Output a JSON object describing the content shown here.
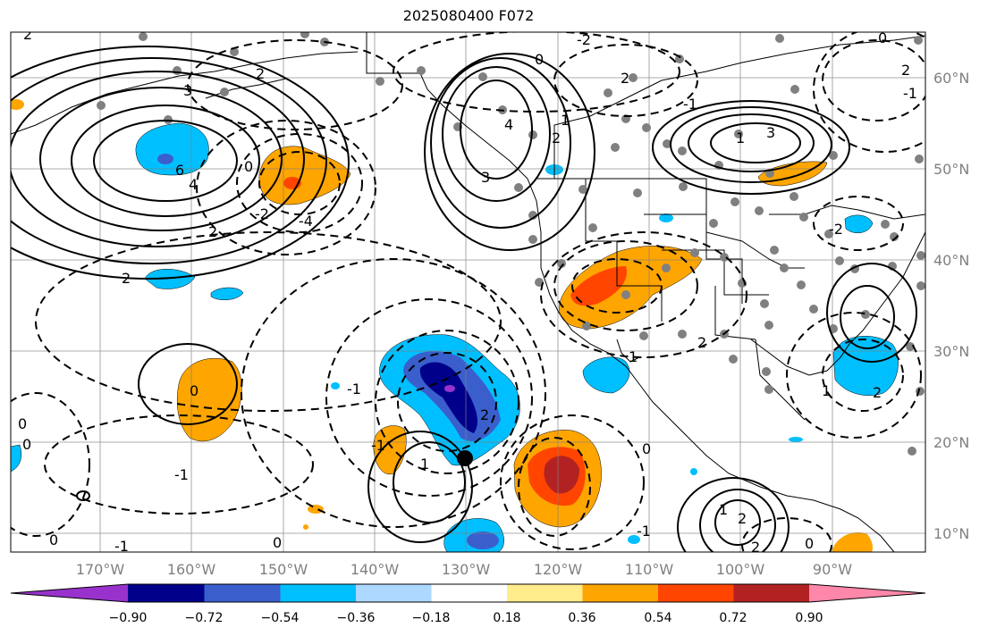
{
  "title": "2025080400 F072",
  "latitude_labels": [
    "60°N",
    "50°N",
    "40°N",
    "30°N",
    "20°N",
    "10°N"
  ],
  "longitude_labels": [
    "170°W",
    "160°W",
    "150°W",
    "140°W",
    "130°W",
    "120°W",
    "110°W",
    "100°W",
    "90°W"
  ],
  "colorbar": {
    "tick_labels": [
      "−0.90",
      "−0.72",
      "−0.54",
      "−0.36",
      "−0.18",
      "0.18",
      "0.36",
      "0.54",
      "0.72",
      "0.90"
    ],
    "colors": [
      "#9932cc",
      "#00008b",
      "#3a5fcd",
      "#00bfff",
      "#add8ff",
      "#ffffff",
      "#ffec8b",
      "#ffa500",
      "#ff4500",
      "#b22222",
      "#ff88aa"
    ]
  },
  "contour_labels": [
    {
      "text": "2"
    },
    {
      "text": "0"
    },
    {
      "text": "2"
    },
    {
      "text": "3"
    },
    {
      "text": "6"
    },
    {
      "text": "4"
    },
    {
      "text": "2"
    },
    {
      "text": "0"
    },
    {
      "text": "-2"
    },
    {
      "text": "-4"
    },
    {
      "text": "2"
    },
    {
      "text": "-2"
    },
    {
      "text": "4"
    },
    {
      "text": "3"
    },
    {
      "text": "2"
    },
    {
      "text": "1"
    },
    {
      "text": "-1"
    },
    {
      "text": "0"
    },
    {
      "text": "3"
    },
    {
      "text": "1"
    },
    {
      "text": "2"
    },
    {
      "text": "-2"
    },
    {
      "text": "0"
    },
    {
      "text": "1"
    },
    {
      "text": "-1"
    },
    {
      "text": "0"
    },
    {
      "text": "1"
    },
    {
      "text": "2"
    },
    {
      "text": "0"
    },
    {
      "text": "-1"
    },
    {
      "text": "-1"
    },
    {
      "text": "0"
    },
    {
      "text": "0"
    },
    {
      "text": "1"
    },
    {
      "text": "2"
    },
    {
      "text": "2"
    },
    {
      "text": "-1"
    },
    {
      "text": "0"
    },
    {
      "text": "0"
    },
    {
      "text": "1"
    },
    {
      "text": "2"
    },
    {
      "text": "-1"
    },
    {
      "text": "2"
    },
    {
      "text": "2"
    },
    {
      "text": "-1"
    }
  ]
}
